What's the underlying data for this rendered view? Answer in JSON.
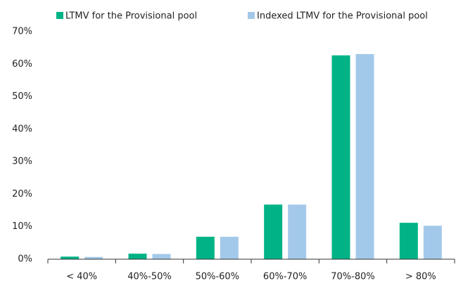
{
  "chart_data": {
    "type": "bar",
    "categories": [
      "< 40%",
      "40%-50%",
      "50%-60%",
      "60%-70%",
      "70%-80%",
      "> 80%"
    ],
    "series": [
      {
        "name": "LTMV for the Provisional pool",
        "color": "#00b386",
        "values": [
          0.8,
          1.7,
          6.9,
          16.8,
          62.7,
          11.2
        ]
      },
      {
        "name": "Indexed LTMV for the Provisional pool",
        "color": "#a3c9ea",
        "values": [
          0.7,
          1.6,
          6.9,
          16.8,
          63.1,
          10.3
        ]
      }
    ],
    "ylim": [
      0,
      70
    ],
    "yticks": [
      {
        "value": 0,
        "label": "0%"
      },
      {
        "value": 10,
        "label": "10%"
      },
      {
        "value": 20,
        "label": "20%"
      },
      {
        "value": 30,
        "label": "30%"
      },
      {
        "value": 40,
        "label": "40%"
      },
      {
        "value": 50,
        "label": "50%"
      },
      {
        "value": 60,
        "label": "60%"
      },
      {
        "value": 70,
        "label": "70%"
      }
    ],
    "grid": false,
    "legend": "top"
  }
}
